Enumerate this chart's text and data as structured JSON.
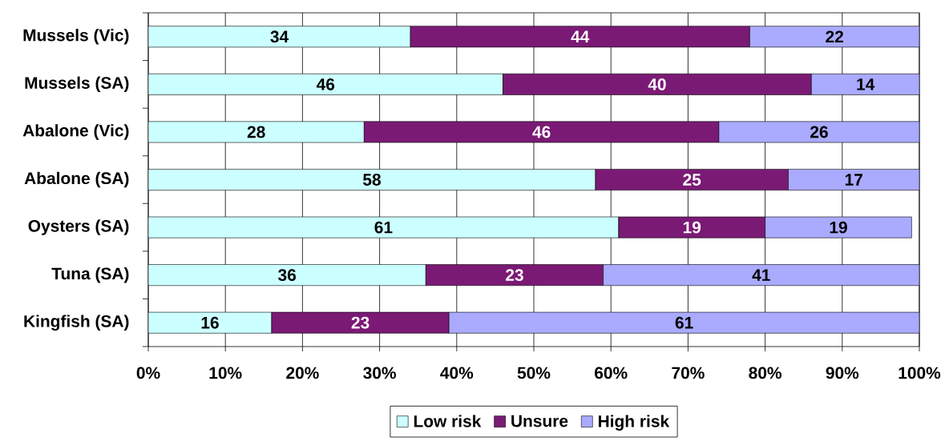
{
  "chart_data": {
    "type": "bar",
    "orientation": "horizontal",
    "stacked": true,
    "categories": [
      "Mussels (Vic)",
      "Mussels (SA)",
      "Abalone (Vic)",
      "Abalone (SA)",
      "Oysters (SA)",
      "Tuna (SA)",
      "Kingfish (SA)"
    ],
    "series": [
      {
        "name": "Low risk",
        "color": "#ccffff",
        "values": [
          34,
          46,
          28,
          58,
          61,
          36,
          16
        ]
      },
      {
        "name": "Unsure",
        "color": "#7b1a75",
        "values": [
          44,
          40,
          46,
          25,
          19,
          23,
          23
        ]
      },
      {
        "name": "High risk",
        "color": "#aaaaff",
        "values": [
          22,
          14,
          26,
          17,
          19,
          41,
          61
        ]
      }
    ],
    "xlim": [
      0,
      100
    ],
    "xticks": [
      {
        "value": 0,
        "label": "0%"
      },
      {
        "value": 10,
        "label": "10%"
      },
      {
        "value": 20,
        "label": "20%"
      },
      {
        "value": 30,
        "label": "30%"
      },
      {
        "value": 40,
        "label": "40%"
      },
      {
        "value": 50,
        "label": "50%"
      },
      {
        "value": 60,
        "label": "60%"
      },
      {
        "value": 70,
        "label": "70%"
      },
      {
        "value": 80,
        "label": "80%"
      },
      {
        "value": 90,
        "label": "90%"
      },
      {
        "value": 100,
        "label": "100%"
      }
    ],
    "grid": "x",
    "legend": "bottom",
    "data_labels": true
  }
}
